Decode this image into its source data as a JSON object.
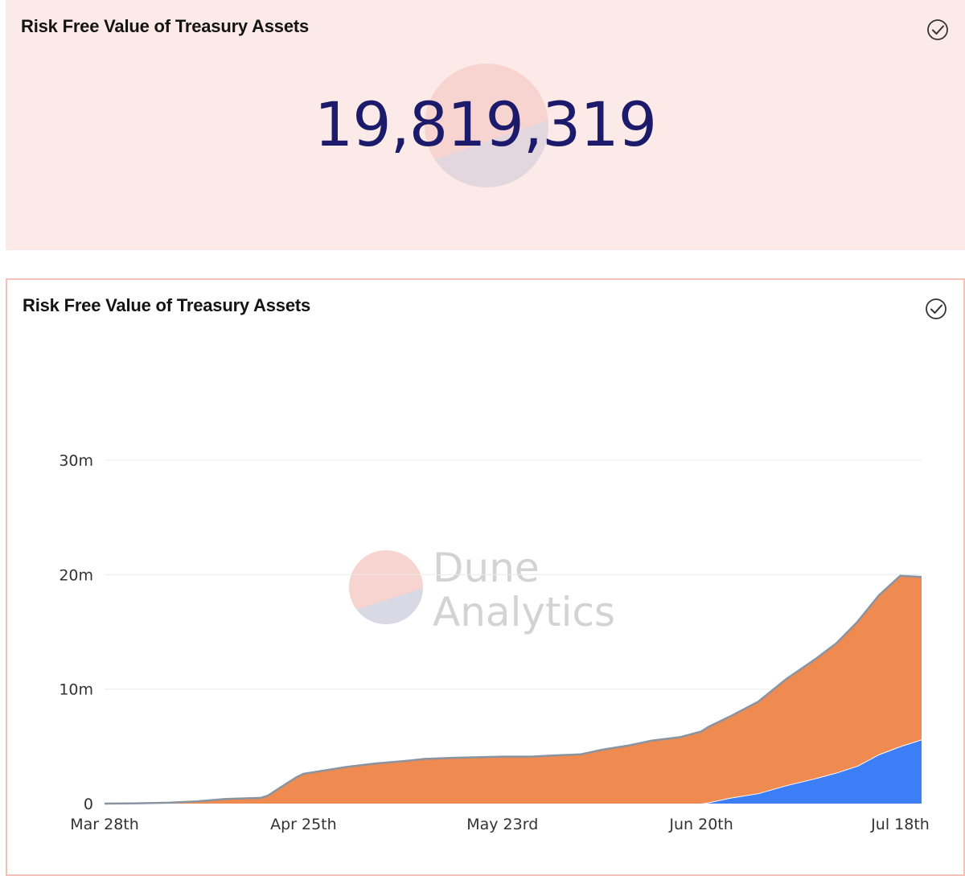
{
  "counter_panel": {
    "title": "Risk Free Value of Treasury Assets",
    "value": "19,819,319",
    "check_icon": "check-circle-icon"
  },
  "chart_panel": {
    "title": "Risk Free Value of Treasury Assets",
    "check_icon": "check-circle-icon",
    "watermark": {
      "line1": "Dune",
      "line2": "Analytics"
    }
  },
  "colors": {
    "background_panel": "#fbeae7",
    "counter_text": "#1c1a6b",
    "series_orange": "#ef8a50",
    "series_blue": "#3b7ef6",
    "stack_outline": "#8a94a0",
    "gridline": "#ececec"
  },
  "chart_data": {
    "type": "area",
    "stacked": true,
    "title": "Risk Free Value of Treasury Assets",
    "xlabel": "",
    "ylabel": "",
    "x_range": [
      "2021-03-28",
      "2021-07-21"
    ],
    "ylim": [
      0,
      30000000
    ],
    "y_ticks": [
      {
        "value": 0,
        "label": "0"
      },
      {
        "value": 10000000,
        "label": "10m"
      },
      {
        "value": 20000000,
        "label": "20m"
      },
      {
        "value": 30000000,
        "label": "30m"
      }
    ],
    "x_ticks": [
      {
        "date": "2021-03-28",
        "label": "Mar 28th"
      },
      {
        "date": "2021-04-25",
        "label": "Apr 25th"
      },
      {
        "date": "2021-05-23",
        "label": "May 23rd"
      },
      {
        "date": "2021-06-20",
        "label": "Jun 20th"
      },
      {
        "date": "2021-07-18",
        "label": "Jul 18th"
      }
    ],
    "grid": true,
    "legend": "none",
    "series": [
      {
        "color": "#3b7ef6",
        "points": [
          [
            "2021-03-28",
            0
          ],
          [
            "2021-06-20",
            0
          ],
          [
            "2021-06-21",
            100000
          ],
          [
            "2021-06-24",
            500000
          ],
          [
            "2021-06-28",
            900000
          ],
          [
            "2021-07-02",
            1600000
          ],
          [
            "2021-07-06",
            2200000
          ],
          [
            "2021-07-09",
            2700000
          ],
          [
            "2021-07-12",
            3300000
          ],
          [
            "2021-07-15",
            4300000
          ],
          [
            "2021-07-18",
            5000000
          ],
          [
            "2021-07-21",
            5600000
          ]
        ]
      },
      {
        "color": "#ef8a50",
        "points": [
          [
            "2021-03-28",
            0
          ],
          [
            "2021-04-01",
            20000
          ],
          [
            "2021-04-06",
            80000
          ],
          [
            "2021-04-10",
            200000
          ],
          [
            "2021-04-14",
            400000
          ],
          [
            "2021-04-19",
            500000
          ],
          [
            "2021-04-20",
            700000
          ],
          [
            "2021-04-22",
            1500000
          ],
          [
            "2021-04-24",
            2300000
          ],
          [
            "2021-04-25",
            2600000
          ],
          [
            "2021-04-28",
            2900000
          ],
          [
            "2021-05-01",
            3200000
          ],
          [
            "2021-05-05",
            3500000
          ],
          [
            "2021-05-09",
            3700000
          ],
          [
            "2021-05-12",
            3900000
          ],
          [
            "2021-05-16",
            4000000
          ],
          [
            "2021-05-23",
            4100000
          ],
          [
            "2021-05-27",
            4100000
          ],
          [
            "2021-05-30",
            4200000
          ],
          [
            "2021-06-03",
            4300000
          ],
          [
            "2021-06-06",
            4700000
          ],
          [
            "2021-06-10",
            5100000
          ],
          [
            "2021-06-13",
            5500000
          ],
          [
            "2021-06-17",
            5800000
          ],
          [
            "2021-06-20",
            6300000
          ],
          [
            "2021-06-21",
            6600000
          ],
          [
            "2021-06-24",
            7100000
          ],
          [
            "2021-06-28",
            8000000
          ],
          [
            "2021-07-02",
            9300000
          ],
          [
            "2021-07-06",
            10400000
          ],
          [
            "2021-07-09",
            11300000
          ],
          [
            "2021-07-12",
            12600000
          ],
          [
            "2021-07-15",
            13900000
          ],
          [
            "2021-07-18",
            14900000
          ],
          [
            "2021-07-21",
            14200000
          ]
        ]
      }
    ],
    "stack_total_end": 19819319
  }
}
